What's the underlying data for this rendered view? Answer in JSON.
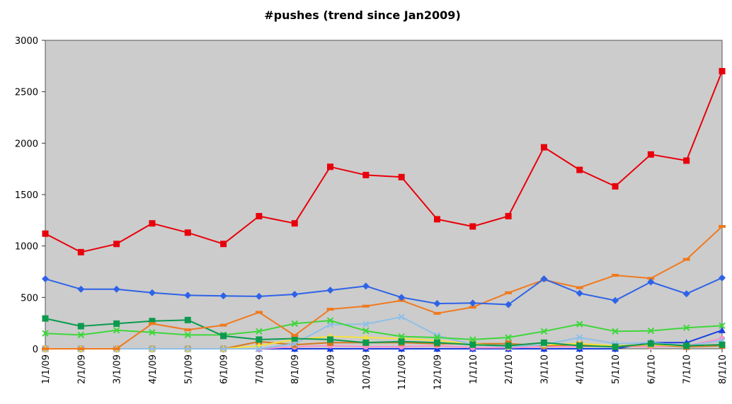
{
  "chart_data": {
    "type": "line",
    "title": "#pushes (trend since Jan2009)",
    "xlabel": "",
    "ylabel": "",
    "ylim": [
      0,
      3000
    ],
    "yticks": [
      0,
      500,
      1000,
      1500,
      2000,
      2500,
      3000
    ],
    "grid": false,
    "legend": "none",
    "categories": [
      "1/1/09",
      "2/1/09",
      "3/1/09",
      "4/1/09",
      "5/1/09",
      "6/1/09",
      "7/1/09",
      "8/1/09",
      "9/1/09",
      "10/1/09",
      "11/1/09",
      "12/1/09",
      "1/1/10",
      "2/1/10",
      "3/1/10",
      "4/1/10",
      "5/1/10",
      "6/1/10",
      "7/1/10",
      "8/1/10"
    ],
    "series": [
      {
        "color": "#e8000b",
        "marker": "square",
        "values": [
          1120,
          940,
          1020,
          1220,
          1130,
          1020,
          1290,
          1220,
          1770,
          1690,
          1670,
          1260,
          1190,
          1290,
          1960,
          1740,
          1580,
          1890,
          1830,
          2700
        ]
      },
      {
        "color": "#2e63e8",
        "marker": "diamond",
        "values": [
          680,
          580,
          580,
          545,
          520,
          515,
          510,
          530,
          570,
          610,
          500,
          440,
          445,
          430,
          680,
          540,
          470,
          650,
          535,
          690
        ]
      },
      {
        "color": "#f07a1e",
        "marker": "dash",
        "values": [
          0,
          0,
          0,
          245,
          185,
          230,
          355,
          130,
          385,
          415,
          470,
          345,
          405,
          545,
          670,
          595,
          715,
          685,
          870,
          1190
        ]
      },
      {
        "color": "#0c9a4e",
        "marker": "square",
        "values": [
          295,
          220,
          245,
          270,
          280,
          125,
          90,
          100,
          90,
          60,
          70,
          60,
          40,
          30,
          60,
          30,
          20,
          50,
          30,
          40
        ]
      },
      {
        "color": "#3ed63a",
        "marker": "x",
        "values": [
          150,
          135,
          180,
          160,
          135,
          135,
          170,
          245,
          275,
          175,
          120,
          110,
          90,
          110,
          170,
          240,
          170,
          175,
          205,
          225
        ]
      },
      {
        "color": "#8fbfe8",
        "marker": "x",
        "values": [
          0,
          0,
          0,
          0,
          0,
          0,
          0,
          50,
          235,
          240,
          310,
          130,
          40,
          20,
          40,
          110,
          50,
          60,
          30,
          80
        ]
      },
      {
        "color": "#f5e23c",
        "marker": "triangle",
        "values": [
          0,
          0,
          0,
          0,
          0,
          0,
          30,
          90,
          120,
          110,
          100,
          80,
          50,
          20,
          40,
          50,
          30,
          40,
          30,
          40
        ]
      },
      {
        "color": "#d6771b",
        "marker": "square",
        "values": [
          0,
          0,
          0,
          0,
          0,
          0,
          70,
          40,
          60,
          60,
          60,
          50,
          50,
          50,
          30,
          40,
          20,
          40,
          20,
          30
        ]
      },
      {
        "color": "#ff8fc8",
        "marker": "circle",
        "values": [
          0,
          0,
          0,
          0,
          0,
          0,
          0,
          20,
          30,
          20,
          20,
          30,
          10,
          10,
          20,
          20,
          30,
          20,
          30,
          100
        ]
      },
      {
        "color": "#1a3fe0",
        "marker": "triangle",
        "values": [
          0,
          0,
          0,
          0,
          0,
          0,
          0,
          0,
          0,
          0,
          0,
          0,
          0,
          0,
          0,
          0,
          0,
          60,
          60,
          180
        ]
      }
    ]
  }
}
